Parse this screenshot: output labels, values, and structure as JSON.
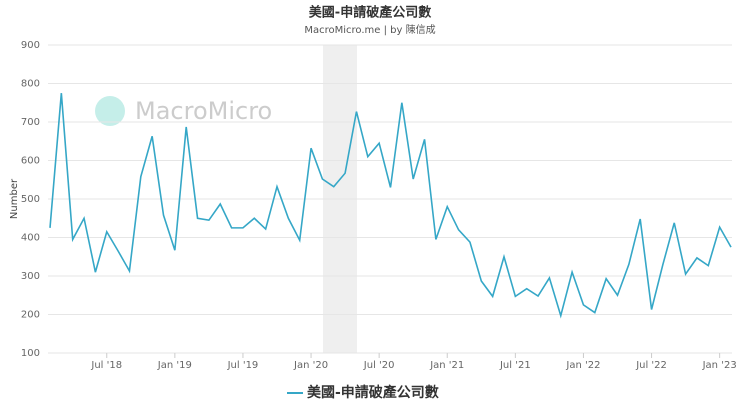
{
  "chart_data": {
    "type": "line",
    "title": "美國-申請破產公司數",
    "subtitle": "MacroMicro.me | by 陳信成",
    "watermark": "MacroMicro",
    "y_label": "Number",
    "categories": [
      null,
      null,
      null,
      null,
      null,
      "Jul '18",
      null,
      null,
      null,
      null,
      null,
      "Jan '19",
      null,
      null,
      null,
      null,
      null,
      "Jul '19",
      null,
      null,
      null,
      null,
      null,
      "Jan '20",
      null,
      null,
      null,
      null,
      null,
      "Jul '20",
      null,
      null,
      null,
      null,
      null,
      "Jan '21",
      null,
      null,
      null,
      null,
      null,
      "Jul '21",
      null,
      null,
      null,
      null,
      null,
      "Jan '22",
      null,
      null,
      null,
      null,
      null,
      "Jul '22",
      null,
      null,
      null,
      null,
      null,
      "Jan '23",
      null
    ],
    "series": [
      {
        "name": "美國-申請破產公司數",
        "color": "#35a7c7",
        "values": [
          425,
          775,
          395,
          450,
          310,
          415,
          365,
          313,
          558,
          663,
          458,
          367,
          687,
          450,
          445,
          487,
          425,
          425,
          450,
          422,
          532,
          450,
          393,
          632,
          552,
          532,
          567,
          727,
          610,
          645,
          530,
          750,
          552,
          655,
          395,
          480,
          420,
          388,
          287,
          247,
          350,
          247,
          267,
          248,
          295,
          197,
          310,
          225,
          205,
          293,
          250,
          330,
          448,
          213,
          330,
          438,
          305,
          347,
          327,
          427,
          375
        ]
      }
    ],
    "ylim": [
      100,
      900
    ],
    "yticks": [
      100,
      200,
      300,
      400,
      500,
      600,
      700,
      800,
      900
    ],
    "grid": true
  }
}
